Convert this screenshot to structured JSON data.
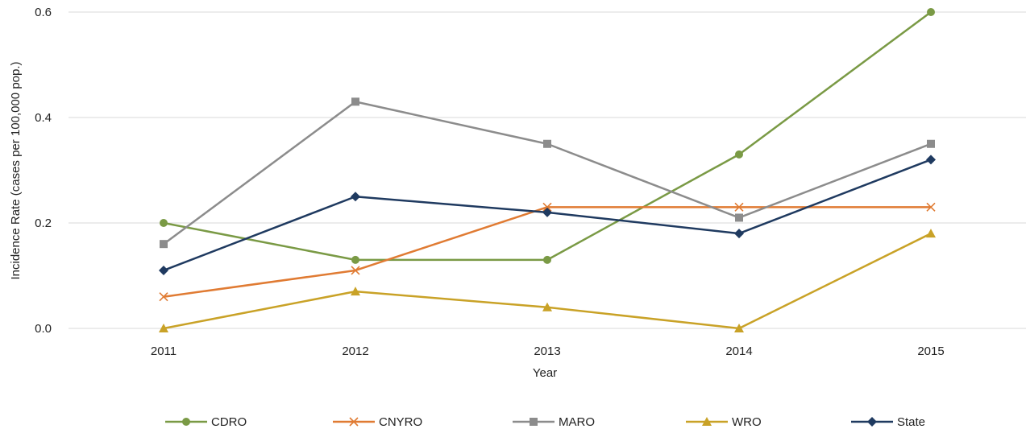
{
  "chart_data": {
    "type": "line",
    "title": "",
    "xlabel": "Year",
    "ylabel": "Incidence Rate (cases per 100,000 pop.)",
    "categories": [
      "2011",
      "2012",
      "2013",
      "2014",
      "2015"
    ],
    "ylim": [
      0,
      0.6
    ],
    "yticks": [
      "0.0",
      "0.2",
      "0.4",
      "0.6"
    ],
    "grid": "horizontal",
    "legend": "bottom",
    "series": [
      {
        "name": "CDRO",
        "values": [
          0.2,
          0.13,
          0.13,
          0.33,
          0.6
        ],
        "color": "#7a9a45",
        "marker": "circle"
      },
      {
        "name": "CNYRO",
        "values": [
          0.06,
          0.11,
          0.23,
          0.23,
          0.23
        ],
        "color": "#e07b33",
        "marker": "x"
      },
      {
        "name": "MARO",
        "values": [
          0.16,
          0.43,
          0.35,
          0.21,
          0.35
        ],
        "color": "#8c8c8c",
        "marker": "square"
      },
      {
        "name": "WRO",
        "values": [
          0.0,
          0.07,
          0.04,
          0.0,
          0.18
        ],
        "color": "#c9a227",
        "marker": "triangle"
      },
      {
        "name": "State",
        "values": [
          0.11,
          0.25,
          0.22,
          0.18,
          0.32
        ],
        "color": "#1f3a60",
        "marker": "diamond"
      }
    ]
  }
}
